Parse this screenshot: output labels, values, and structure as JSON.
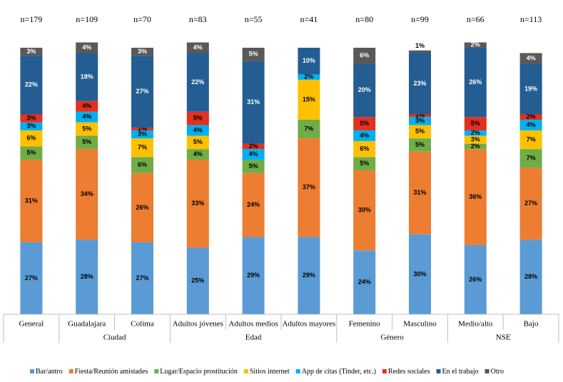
{
  "chart_data": {
    "type": "stacked_bar",
    "categories": [
      "General",
      "Guadalajara",
      "Colima",
      "Adultos jóvenes",
      "Adultos medios",
      "Adultos mayores",
      "Femenino",
      "Masculino",
      "Medio/alto",
      "Bajo"
    ],
    "n_labels": [
      "n=179",
      "n=109",
      "n=70",
      "n=83",
      "n=55",
      "n=41",
      "n=80",
      "n=99",
      "n=66",
      "n=113"
    ],
    "groups": [
      {
        "label": null,
        "count": 1
      },
      {
        "label": "Ciudad",
        "count": 2
      },
      {
        "label": "Edad",
        "count": 3
      },
      {
        "label": "Género",
        "count": 2
      },
      {
        "label": "NSE",
        "count": 2
      }
    ],
    "ylim": [
      0,
      100
    ],
    "series": [
      {
        "name": "Bar/antro",
        "color": "#5b9bd5",
        "label_color": "#000000",
        "values": [
          27,
          28,
          27,
          25,
          29,
          29,
          24,
          30,
          26,
          28
        ],
        "value_labels": [
          "27%",
          "28%",
          "27%",
          "25%",
          "29%",
          "29%",
          "24%",
          "30%",
          "26%",
          "28%"
        ]
      },
      {
        "name": "Fiesta/Reunión amistades",
        "color": "#ed7d31",
        "label_color": "#000000",
        "values": [
          31,
          34,
          26,
          33,
          24,
          37,
          30,
          31,
          36,
          27
        ],
        "value_labels": [
          "31%",
          "34%",
          "26%",
          "33%",
          "24%",
          "37%",
          "30%",
          "31%",
          "36%",
          "27%"
        ]
      },
      {
        "name": "Lugar/Espacio prostitución",
        "color": "#70ad47",
        "label_color": "#000000",
        "values": [
          5,
          5,
          6,
          4,
          5,
          7,
          5,
          5,
          2,
          7
        ],
        "value_labels": [
          "5%",
          "5%",
          "6%",
          "4%",
          "5%",
          "7%",
          "5%",
          "5%",
          "2%",
          "7%"
        ]
      },
      {
        "name": "Sitios internet",
        "color": "#ffc000",
        "label_color": "#000000",
        "values": [
          6,
          5,
          7,
          5,
          null,
          15,
          6,
          5,
          3,
          7
        ],
        "value_labels": [
          "6%",
          "5%",
          "7%",
          "5%",
          null,
          "15%",
          "6%",
          "5%",
          "3%",
          "7%"
        ]
      },
      {
        "name": "App de citas (Tinder, etc.)",
        "color": "#00b0f0",
        "label_color": "#000000",
        "values": [
          3,
          4,
          3,
          4,
          4,
          2,
          4,
          3,
          2,
          4
        ],
        "value_labels": [
          "3%",
          "4%",
          "3%",
          "4%",
          "4%",
          "2%",
          "4%",
          "3%",
          "2%",
          "4%"
        ]
      },
      {
        "name": "Redes sociales",
        "color": "#e3301f",
        "label_color": "#000000",
        "values": [
          3,
          4,
          1,
          5,
          2,
          null,
          5,
          1,
          5,
          2
        ],
        "value_labels": [
          "3%",
          "4%",
          "1%",
          "5%",
          "2%",
          null,
          "5%",
          "1%",
          "5%",
          "2%"
        ]
      },
      {
        "name": "En el trabajo",
        "color": "#245d92",
        "label_color": "#ffffff",
        "values": [
          22,
          18,
          27,
          22,
          31,
          10,
          20,
          23,
          26,
          19
        ],
        "value_labels": [
          "22%",
          "18%",
          "27%",
          "22%",
          "31%",
          "10%",
          "20%",
          "23%",
          "26%",
          "19%"
        ]
      },
      {
        "name": "Otro",
        "color": "#595959",
        "label_color": "#ffffff",
        "values": [
          3,
          4,
          3,
          4,
          5,
          null,
          6,
          1,
          2,
          4
        ],
        "value_labels": [
          "3%",
          "4%",
          "3%",
          "4%",
          "5%",
          null,
          "6%",
          "1%",
          "2%",
          "4%"
        ]
      }
    ]
  }
}
